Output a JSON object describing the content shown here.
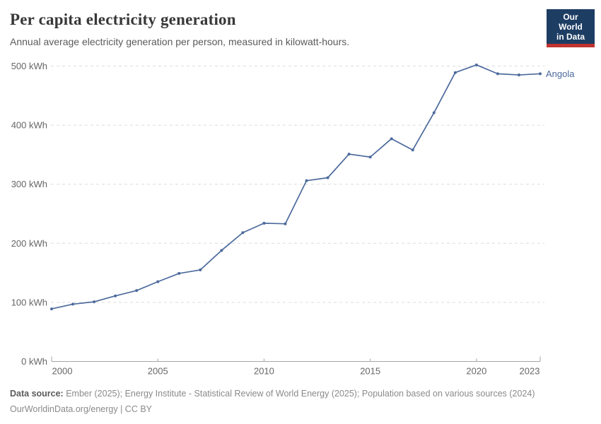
{
  "header": {
    "title": "Per capita electricity generation",
    "subtitle": "Annual average electricity generation per person, measured in kilowatt-hours.",
    "logo": {
      "line1": "Our World",
      "line2": "in Data"
    }
  },
  "chart_data": {
    "type": "line",
    "title": "Per capita electricity generation",
    "xlabel": "",
    "ylabel": "kWh",
    "x": [
      2000,
      2001,
      2002,
      2003,
      2004,
      2005,
      2006,
      2007,
      2008,
      2009,
      2010,
      2011,
      2012,
      2013,
      2014,
      2015,
      2016,
      2017,
      2018,
      2019,
      2020,
      2021,
      2022,
      2023
    ],
    "series": [
      {
        "name": "Angola",
        "color": "#4C6A9C",
        "values": [
          89,
          97,
          101,
          111,
          120,
          135,
          149,
          155,
          188,
          218,
          234,
          233,
          306,
          311,
          351,
          346,
          377,
          358,
          421,
          489,
          502,
          487,
          485,
          487
        ]
      }
    ],
    "ylim": [
      0,
      500
    ],
    "yticks": [
      0,
      100,
      200,
      300,
      400,
      500
    ],
    "ytick_suffix": " kWh",
    "xticks": [
      2000,
      2005,
      2010,
      2015,
      2020,
      2023
    ],
    "grid": "horizontal-dashed",
    "legend": "inline-end-label"
  },
  "footer": {
    "source_label": "Data source:",
    "source_text": "Ember (2025); Energy Institute - Statistical Review of World Energy (2025); Population based on various sources (2024)",
    "attribution": "OurWorldinData.org/energy | CC BY"
  },
  "colors": {
    "line": "#4C6A9C",
    "gridline": "#dcdcdc",
    "axis": "#a5a5a5",
    "tick_text": "#666666",
    "title_text": "#383838",
    "subtitle_text": "#5b5b5b",
    "logo_background": "#1d3d63",
    "logo_stripe": "#c0332e"
  }
}
